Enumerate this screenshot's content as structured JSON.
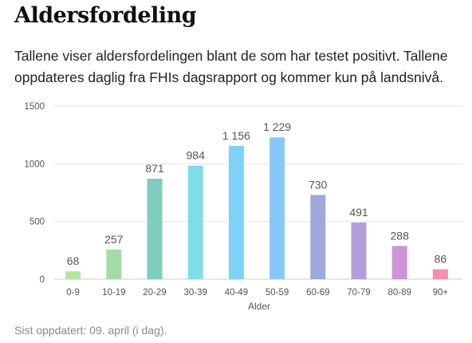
{
  "title": "Aldersfordeling",
  "subtitle": "Tallene viser aldersfordelingen blant de som har testet positivt. Tallene oppdateres daglig fra FHIs dagsrapport og kommer kun på landsnivå.",
  "footer": "Sist oppdatert: 09. april (i dag).",
  "chart_data": {
    "type": "bar",
    "xlabel": "Alder",
    "ylabel": "",
    "ylim": [
      0,
      1500
    ],
    "yticks": [
      0,
      500,
      1000,
      1500
    ],
    "grid": true,
    "categories": [
      "0-9",
      "10-19",
      "20-29",
      "30-39",
      "40-49",
      "50-59",
      "60-69",
      "70-79",
      "80-89",
      "90+"
    ],
    "values": [
      68,
      257,
      871,
      984,
      1156,
      1229,
      730,
      491,
      288,
      86
    ],
    "value_labels": [
      "68",
      "257",
      "871",
      "984",
      "1 156",
      "1 229",
      "730",
      "491",
      "288",
      "86"
    ],
    "colors": [
      "#b5e3a0",
      "#a3dba7",
      "#7fcdbf",
      "#80dde8",
      "#7dd2f8",
      "#88c8f8",
      "#9fa8da",
      "#b39ddb",
      "#ce93d8",
      "#f48fb1"
    ]
  }
}
